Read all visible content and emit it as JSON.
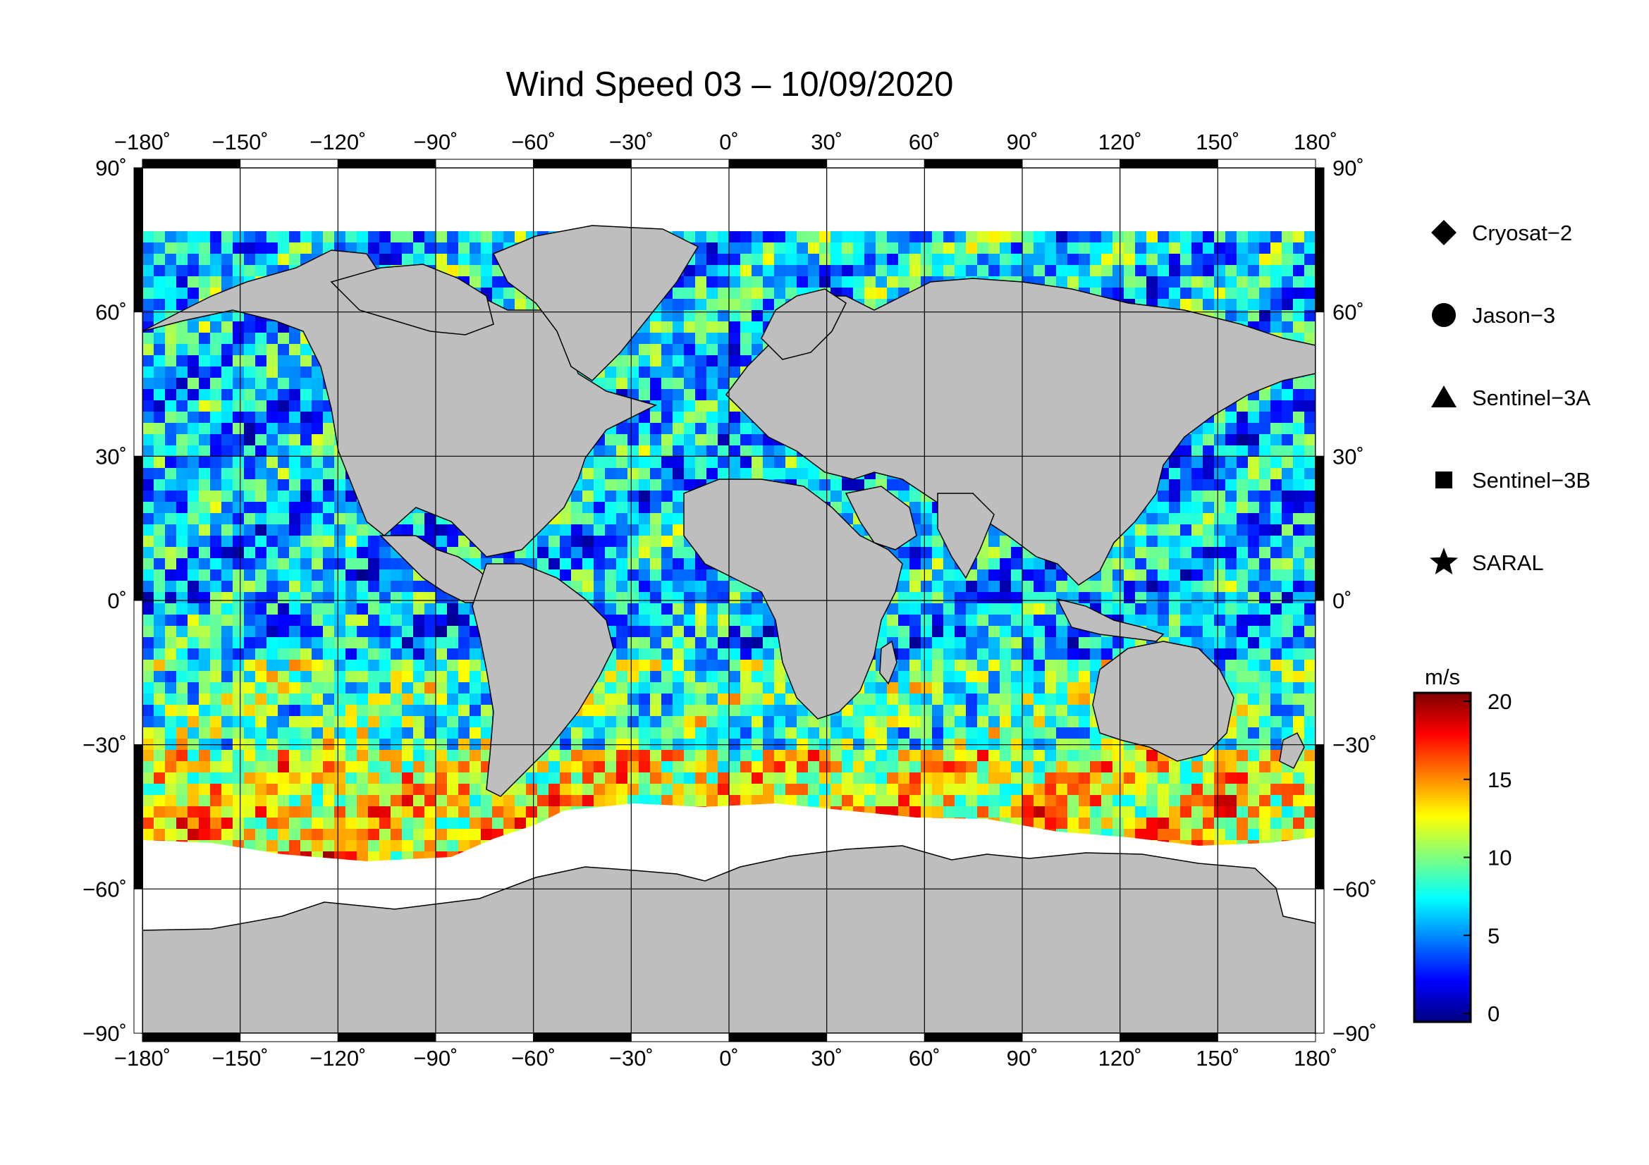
{
  "title": "Wind Speed 03 – 10/09/2020",
  "lon_ticks": [
    "−180˚",
    "−150˚",
    "−120˚",
    "−90˚",
    "−60˚",
    "−30˚",
    "0˚",
    "30˚",
    "60˚",
    "90˚",
    "120˚",
    "150˚",
    "180˚"
  ],
  "lat_ticks": [
    "90˚",
    "60˚",
    "30˚",
    "0˚",
    "−30˚",
    "−60˚",
    "−90˚"
  ],
  "legend": [
    {
      "label": "Cryosat−2",
      "symbol": "diamond"
    },
    {
      "label": "Jason−3",
      "symbol": "circle"
    },
    {
      "label": "Sentinel−3A",
      "symbol": "triangle"
    },
    {
      "label": "Sentinel−3B",
      "symbol": "square"
    },
    {
      "label": "SARAL",
      "symbol": "star"
    }
  ],
  "colorbar": {
    "unit": "m/s",
    "ticks": [
      "20",
      "15",
      "10",
      "5",
      "0"
    ],
    "range": [
      0,
      20
    ],
    "colors": [
      "#00007f",
      "#0000ff",
      "#007fff",
      "#00ffff",
      "#7fff7f",
      "#ffff00",
      "#ff7f00",
      "#ff0000",
      "#7f0000"
    ]
  },
  "colors": {
    "land": "#bebebe",
    "ice": "#ffffff",
    "grid": "#000000"
  }
}
